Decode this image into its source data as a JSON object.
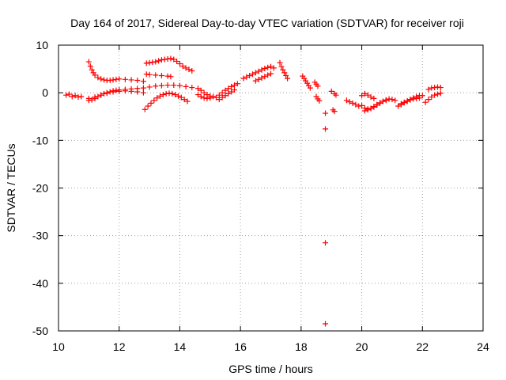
{
  "chart_data": {
    "type": "scatter",
    "title": "Day 164 of 2017, Sidereal Day-to-day VTEC variation (SDTVAR) for receiver roji",
    "xlabel": "GPS time / hours",
    "ylabel": "SDTVAR / TECUs",
    "xlim": [
      10,
      24
    ],
    "ylim": [
      -50,
      10
    ],
    "xticks": [
      10,
      12,
      14,
      16,
      18,
      20,
      22,
      24
    ],
    "yticks": [
      10,
      0,
      -10,
      -20,
      -30,
      -40,
      -50
    ],
    "grid": true,
    "marker": "+",
    "color": "#ff0000",
    "segments": [
      {
        "x": [
          10.25,
          10.35,
          10.45,
          10.55,
          10.65,
          10.75
        ],
        "y": [
          -0.5,
          -0.3,
          -0.8,
          -0.6,
          -0.9,
          -0.8
        ]
      },
      {
        "x": [
          11.0,
          11.05,
          11.1,
          11.15,
          11.2,
          11.3,
          11.4,
          11.5,
          11.6,
          11.7,
          11.8,
          11.9,
          12.0,
          12.2,
          12.4,
          12.6,
          12.8
        ],
        "y": [
          6.5,
          5.6,
          4.8,
          4.2,
          3.7,
          3.2,
          2.9,
          2.7,
          2.6,
          2.6,
          2.7,
          2.8,
          2.9,
          2.8,
          2.7,
          2.6,
          2.4
        ]
      },
      {
        "x": [
          11.0,
          11.1,
          11.2,
          11.3,
          11.4,
          11.5,
          11.6,
          11.7,
          11.8,
          11.9,
          12.0,
          12.2,
          12.4,
          12.6,
          12.8,
          13.0,
          13.2,
          13.4,
          13.6,
          13.8,
          14.0,
          14.2,
          14.4
        ],
        "y": [
          -1.6,
          -1.5,
          -1.2,
          -0.8,
          -0.5,
          -0.2,
          0.0,
          0.2,
          0.4,
          0.5,
          0.6,
          0.7,
          0.8,
          0.9,
          1.0,
          1.2,
          1.4,
          1.5,
          1.6,
          1.6,
          1.5,
          1.3,
          1.1
        ]
      },
      {
        "x": [
          11.0,
          11.2,
          11.4,
          11.6,
          11.8,
          12.0,
          12.2,
          12.4,
          12.6,
          12.8
        ],
        "y": [
          -1.2,
          -0.9,
          -0.5,
          -0.1,
          0.2,
          0.3,
          0.4,
          0.3,
          0.2,
          0.0
        ]
      },
      {
        "x": [
          12.9,
          13.0,
          13.1,
          13.2,
          13.3,
          13.4,
          13.5,
          13.6,
          13.7,
          13.8,
          13.9,
          14.0,
          14.1,
          14.2,
          14.3,
          14.4
        ],
        "y": [
          6.2,
          6.3,
          6.4,
          6.5,
          6.7,
          6.9,
          7.0,
          7.1,
          7.2,
          7.0,
          6.6,
          6.1,
          5.6,
          5.2,
          4.9,
          4.6
        ]
      },
      {
        "x": [
          12.9,
          13.0,
          13.2,
          13.4,
          13.6,
          13.7
        ],
        "y": [
          3.9,
          3.8,
          3.7,
          3.6,
          3.5,
          3.4
        ]
      },
      {
        "x": [
          12.85,
          12.95,
          13.05,
          13.15,
          13.25,
          13.35,
          13.45,
          13.55,
          13.65,
          13.75,
          13.85,
          13.95,
          14.05,
          14.15,
          14.25
        ],
        "y": [
          -3.5,
          -2.8,
          -2.2,
          -1.6,
          -1.1,
          -0.7,
          -0.4,
          -0.2,
          -0.1,
          -0.2,
          -0.4,
          -0.7,
          -1.0,
          -1.4,
          -1.8
        ]
      },
      {
        "x": [
          14.6,
          14.7,
          14.8,
          14.9,
          15.0,
          15.1
        ],
        "y": [
          0.9,
          0.5,
          0.0,
          -0.4,
          -0.7,
          -0.8
        ]
      },
      {
        "x": [
          14.6,
          14.7,
          14.8,
          14.9,
          15.0
        ],
        "y": [
          -0.4,
          -0.8,
          -1.1,
          -1.2,
          -1.1
        ]
      },
      {
        "x": [
          15.2,
          15.3,
          15.4,
          15.5,
          15.6,
          15.7,
          15.8,
          15.9
        ],
        "y": [
          -1.0,
          -0.5,
          0.0,
          0.5,
          0.9,
          1.3,
          1.6,
          1.9
        ]
      },
      {
        "x": [
          15.3,
          15.4,
          15.5,
          15.6,
          15.7,
          15.8
        ],
        "y": [
          -1.4,
          -1.0,
          -0.6,
          -0.2,
          0.2,
          0.6
        ]
      },
      {
        "x": [
          16.1,
          16.2,
          16.3,
          16.4,
          16.5,
          16.6,
          16.7,
          16.8,
          16.9,
          17.0,
          17.1
        ],
        "y": [
          3.0,
          3.3,
          3.6,
          3.9,
          4.2,
          4.5,
          4.8,
          5.1,
          5.3,
          5.5,
          5.2
        ]
      },
      {
        "x": [
          16.5,
          16.6,
          16.7,
          16.8,
          16.9,
          17.0
        ],
        "y": [
          2.5,
          2.8,
          3.1,
          3.4,
          3.7,
          4.0
        ]
      },
      {
        "x": [
          17.3,
          17.35,
          17.4,
          17.45,
          17.5,
          17.55
        ],
        "y": [
          6.3,
          5.5,
          4.8,
          4.2,
          3.6,
          3.0
        ]
      },
      {
        "x": [
          18.05,
          18.1,
          18.15,
          18.2,
          18.25,
          18.3
        ],
        "y": [
          3.5,
          3.0,
          2.5,
          2.0,
          1.5,
          1.0
        ]
      },
      {
        "x": [
          18.45,
          18.5,
          18.55
        ],
        "y": [
          2.2,
          1.8,
          1.4
        ]
      },
      {
        "x": [
          18.5,
          18.55,
          18.6
        ],
        "y": [
          -0.8,
          -1.3,
          -1.7
        ]
      },
      {
        "x": [
          18.8,
          18.8,
          18.8,
          18.8
        ],
        "y": [
          -4.3,
          -7.6,
          -31.5,
          -48.5
        ]
      },
      {
        "x": [
          19.0,
          19.1,
          19.15
        ],
        "y": [
          0.3,
          -0.2,
          -0.5
        ]
      },
      {
        "x": [
          19.05,
          19.1
        ],
        "y": [
          -3.6,
          -3.9
        ]
      },
      {
        "x": [
          19.5,
          19.6,
          19.7,
          19.8,
          19.9
        ],
        "y": [
          -1.6,
          -1.9,
          -2.2,
          -2.5,
          -2.8
        ]
      },
      {
        "x": [
          20.0,
          20.1,
          20.2,
          20.3,
          20.4,
          20.5,
          20.6,
          20.7,
          20.8,
          20.9,
          21.0,
          21.1
        ],
        "y": [
          -2.7,
          -3.2,
          -3.4,
          -3.3,
          -3.0,
          -2.6,
          -2.2,
          -1.8,
          -1.5,
          -1.3,
          -1.4,
          -1.6
        ]
      },
      {
        "x": [
          20.0,
          20.1,
          20.2,
          20.3,
          20.4
        ],
        "y": [
          -0.6,
          -0.2,
          -0.5,
          -0.9,
          -1.2
        ]
      },
      {
        "x": [
          20.1,
          20.2,
          20.3,
          20.4,
          20.5,
          20.6,
          20.7,
          20.8
        ],
        "y": [
          -3.8,
          -3.6,
          -3.3,
          -2.9,
          -2.5,
          -2.1,
          -1.8,
          -1.6
        ]
      },
      {
        "x": [
          21.2,
          21.3,
          21.4,
          21.5,
          21.6,
          21.7,
          21.8,
          21.9,
          22.0
        ],
        "y": [
          -2.8,
          -2.5,
          -2.1,
          -1.8,
          -1.4,
          -1.1,
          -0.8,
          -0.6,
          -0.6
        ]
      },
      {
        "x": [
          21.3,
          21.4,
          21.5,
          21.6,
          21.7,
          21.8,
          21.9
        ],
        "y": [
          -2.3,
          -2.0,
          -1.7,
          -1.5,
          -1.3,
          -1.2,
          -1.1
        ]
      },
      {
        "x": [
          22.1,
          22.2,
          22.3,
          22.4,
          22.5,
          22.6
        ],
        "y": [
          -2.0,
          -1.4,
          -0.9,
          -0.5,
          -0.3,
          -0.1
        ]
      },
      {
        "x": [
          22.2,
          22.3,
          22.4,
          22.5,
          22.6
        ],
        "y": [
          0.7,
          1.0,
          1.1,
          1.2,
          1.1
        ]
      }
    ]
  }
}
